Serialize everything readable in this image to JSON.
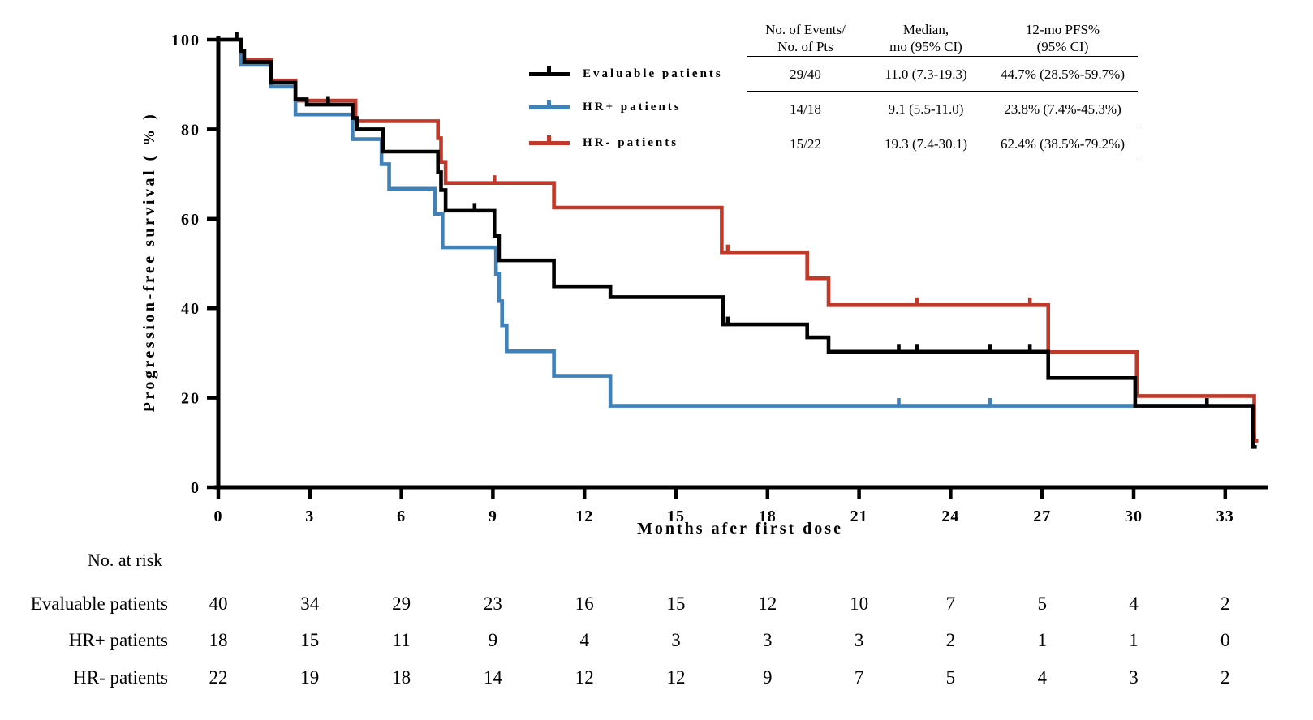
{
  "figure": {
    "y_axis": {
      "label": "Progression-free survival ( % )",
      "ticks": [
        0,
        20,
        40,
        60,
        80,
        100
      ]
    },
    "x_axis": {
      "label": "Months afer first dose",
      "ticks": [
        0,
        3,
        6,
        9,
        12,
        15,
        18,
        21,
        24,
        27,
        30,
        33
      ]
    }
  },
  "legend": {
    "items": [
      {
        "label": "Evaluable patients",
        "color": "#000000"
      },
      {
        "label": "HR+ patients",
        "color": "#4081b8"
      },
      {
        "label": "HR- patients",
        "color": "#c03a2b"
      }
    ]
  },
  "stats_table": {
    "columns": [
      [
        "No. of Events/",
        "No. of Pts"
      ],
      [
        "Median,",
        "mo (95% CI)"
      ],
      [
        "12-mo PFS%",
        "(95% CI)"
      ]
    ],
    "rows": [
      {
        "events_pts": "29/40",
        "median": "11.0 (7.3-19.3)",
        "pfs_12mo": "44.7% (28.5%-59.7%)"
      },
      {
        "events_pts": "14/18",
        "median": "9.1 (5.5-11.0)",
        "pfs_12mo": "23.8% (7.4%-45.3%)"
      },
      {
        "events_pts": "15/22",
        "median": "19.3 (7.4-30.1)",
        "pfs_12mo": "62.4% (38.5%-79.2%)"
      }
    ]
  },
  "chart_data": {
    "type": "line",
    "variant": "kaplan_meier_step",
    "title": "",
    "xlabel": "Months afer first dose",
    "ylabel": "Progression-free survival ( % )",
    "xlim": [
      0,
      34.5
    ],
    "ylim": [
      0,
      100
    ],
    "xticks": [
      0,
      3,
      6,
      9,
      12,
      15,
      18,
      21,
      24,
      27,
      30,
      33
    ],
    "yticks": [
      0,
      20,
      40,
      60,
      80,
      100
    ],
    "grid": false,
    "legend_position": "upper-left-of-table",
    "series": [
      {
        "name": "Evaluable patients",
        "color": "#000000",
        "stub": true,
        "steps": [
          [
            0,
            100
          ],
          [
            0.75,
            97.5
          ],
          [
            0.85,
            95.0
          ],
          [
            1.73,
            90.4
          ],
          [
            2.53,
            86.7
          ],
          [
            2.9,
            85.5
          ],
          [
            4.4,
            82.5
          ],
          [
            4.55,
            80.0
          ],
          [
            5.4,
            75.0
          ],
          [
            7.2,
            70.4
          ],
          [
            7.3,
            66.4
          ],
          [
            7.45,
            61.8
          ],
          [
            9.05,
            56.2
          ],
          [
            9.2,
            50.7
          ],
          [
            11.0,
            44.9
          ],
          [
            12.85,
            42.5
          ],
          [
            16.55,
            36.4
          ],
          [
            19.3,
            33.5
          ],
          [
            20.0,
            30.3
          ],
          [
            27.2,
            24.4
          ],
          [
            30.05,
            18.2
          ],
          [
            33.9,
            9.0
          ]
        ],
        "censors": [
          [
            0.6,
            100
          ],
          [
            3.6,
            85.5
          ],
          [
            8.4,
            61.8
          ],
          [
            16.7,
            36.4
          ],
          [
            22.3,
            30.3
          ],
          [
            22.9,
            30.3
          ],
          [
            25.3,
            30.3
          ],
          [
            26.6,
            30.3
          ],
          [
            32.4,
            18.2
          ],
          [
            33.9,
            9.0
          ]
        ]
      },
      {
        "name": "HR+ patients",
        "color": "#4081b8",
        "stub": false,
        "steps": [
          [
            0,
            100
          ],
          [
            0.75,
            94.4
          ],
          [
            1.73,
            89.5
          ],
          [
            2.53,
            83.3
          ],
          [
            4.4,
            77.8
          ],
          [
            5.35,
            72.2
          ],
          [
            5.6,
            66.7
          ],
          [
            7.1,
            61.1
          ],
          [
            7.35,
            53.6
          ],
          [
            9.1,
            47.6
          ],
          [
            9.2,
            41.6
          ],
          [
            9.3,
            36.2
          ],
          [
            9.45,
            30.4
          ],
          [
            11.0,
            24.9
          ],
          [
            12.85,
            18.2
          ],
          [
            32.4,
            18.2
          ]
        ],
        "censors": [
          [
            22.3,
            18.2
          ],
          [
            25.3,
            18.2
          ]
        ]
      },
      {
        "name": "HR- patients",
        "color": "#c03a2b",
        "stub": true,
        "steps": [
          [
            0,
            100
          ],
          [
            0.75,
            95.5
          ],
          [
            1.73,
            90.9
          ],
          [
            2.53,
            86.4
          ],
          [
            4.5,
            81.8
          ],
          [
            7.2,
            78.0
          ],
          [
            7.3,
            72.7
          ],
          [
            7.45,
            68.0
          ],
          [
            11.0,
            62.5
          ],
          [
            16.5,
            52.5
          ],
          [
            19.3,
            46.7
          ],
          [
            20.0,
            40.7
          ],
          [
            27.2,
            30.2
          ],
          [
            30.1,
            20.4
          ],
          [
            33.95,
            10.4
          ]
        ],
        "censors": [
          [
            9.05,
            68.0
          ],
          [
            16.7,
            52.5
          ],
          [
            22.9,
            40.7
          ],
          [
            26.6,
            40.7
          ],
          [
            33.95,
            10.4
          ]
        ]
      }
    ]
  },
  "risk_table": {
    "title": "No. at risk",
    "months": [
      0,
      3,
      6,
      9,
      12,
      15,
      18,
      21,
      24,
      27,
      30,
      33
    ],
    "rows": [
      {
        "label": "Evaluable patients",
        "counts": [
          40,
          34,
          29,
          23,
          16,
          15,
          12,
          10,
          7,
          5,
          4,
          2
        ]
      },
      {
        "label": "HR+ patients",
        "counts": [
          18,
          15,
          11,
          9,
          4,
          3,
          3,
          3,
          2,
          1,
          1,
          0
        ]
      },
      {
        "label": "HR- patients",
        "counts": [
          22,
          19,
          18,
          14,
          12,
          12,
          9,
          7,
          5,
          4,
          3,
          2
        ]
      }
    ]
  }
}
